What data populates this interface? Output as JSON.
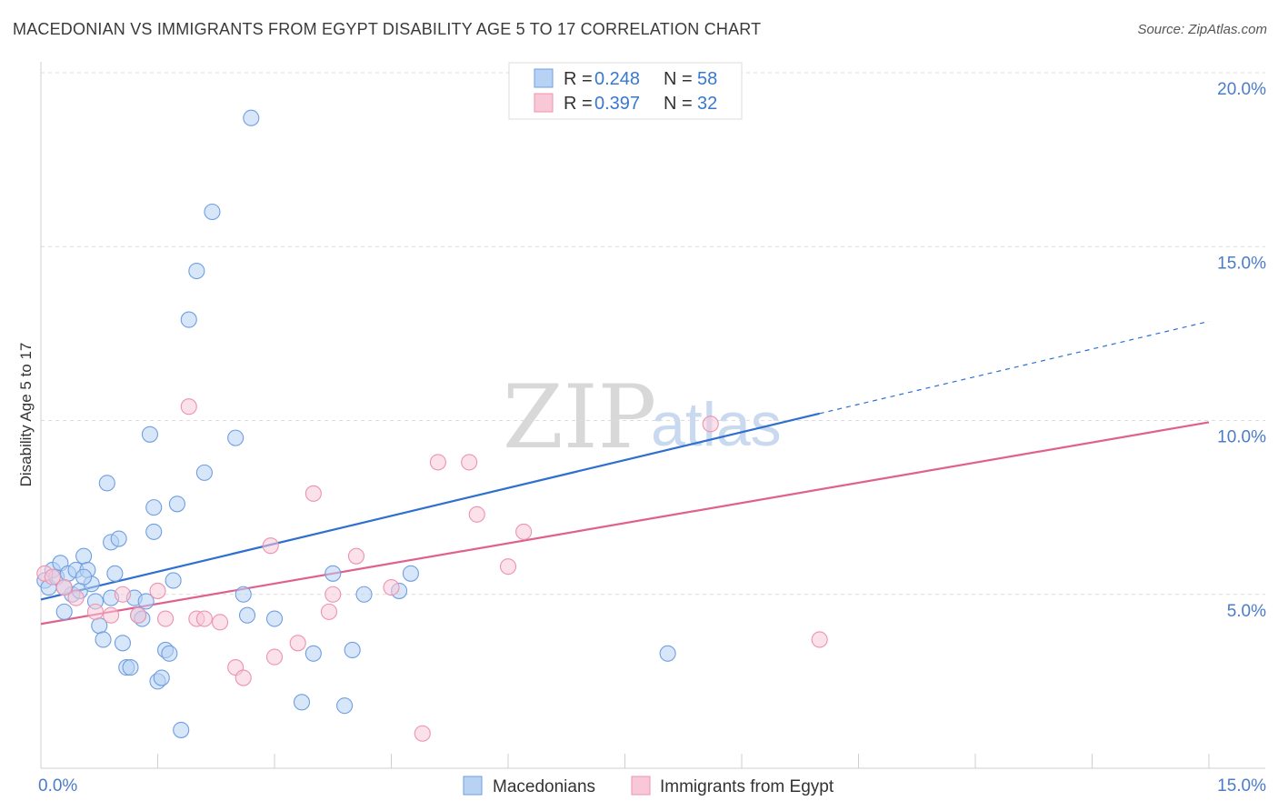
{
  "header": {
    "title": "MACEDONIAN VS IMMIGRANTS FROM EGYPT DISABILITY AGE 5 TO 17 CORRELATION CHART",
    "source": "Source: ZipAtlas.com"
  },
  "watermark": {
    "zip": "ZIP",
    "atlas": "atlas"
  },
  "legend": {
    "r_key": "R =",
    "n_key": "N =",
    "entries": [
      {
        "r": "0.248",
        "n": "58",
        "color": "#a9c8f2"
      },
      {
        "r": "0.397",
        "n": "32",
        "color": "#f6b9cc"
      }
    ]
  },
  "bottom_legend": [
    "Macedonians",
    "Immigrants from Egypt"
  ],
  "chart_data": {
    "type": "scatter",
    "title": "MACEDONIAN VS IMMIGRANTS FROM EGYPT DISABILITY AGE 5 TO 17 CORRELATION CHART",
    "xlabel": "",
    "ylabel": "Disability Age 5 to 17",
    "xlim": [
      0,
      15
    ],
    "ylim": [
      0,
      20
    ],
    "x_tick_labels": [
      "0.0%",
      "15.0%"
    ],
    "y_ticks": [
      5,
      10,
      15,
      20
    ],
    "y_tick_labels": [
      "5.0%",
      "10.0%",
      "15.0%",
      "20.0%"
    ],
    "grid": true,
    "series": [
      {
        "name": "Macedonians",
        "color": "#6f9fe0",
        "fill": "#b8d2f4",
        "line_color": "#2f6fd0",
        "trend": {
          "x0": 0,
          "y0": 4.85,
          "x1": 10.0,
          "y1": 10.2,
          "dash_to_x": 15.0,
          "dash_to_y": 12.85
        },
        "x": [
          0.05,
          0.1,
          0.15,
          0.2,
          0.25,
          0.3,
          0.35,
          0.4,
          0.45,
          0.5,
          0.55,
          0.6,
          0.65,
          0.7,
          0.75,
          0.8,
          0.85,
          0.9,
          0.95,
          1.0,
          1.05,
          1.1,
          1.15,
          1.2,
          1.25,
          1.3,
          1.35,
          1.4,
          1.45,
          1.5,
          1.55,
          1.6,
          1.65,
          1.7,
          1.75,
          1.8,
          1.9,
          2.0,
          2.1,
          2.2,
          2.5,
          2.6,
          2.65,
          2.7,
          3.0,
          3.35,
          3.5,
          3.75,
          3.9,
          4.0,
          4.15,
          4.6,
          4.75,
          8.05,
          0.3,
          0.55,
          0.9,
          1.45
        ],
        "y": [
          5.4,
          5.2,
          5.7,
          5.5,
          5.9,
          4.5,
          5.6,
          5.0,
          5.7,
          5.1,
          6.1,
          5.7,
          5.3,
          4.8,
          4.1,
          3.7,
          8.2,
          6.5,
          5.6,
          6.6,
          3.6,
          2.9,
          2.9,
          4.9,
          4.4,
          4.3,
          4.8,
          9.6,
          7.5,
          2.5,
          2.6,
          3.4,
          3.3,
          5.4,
          7.6,
          1.1,
          12.9,
          14.3,
          8.5,
          16.0,
          9.5,
          5.0,
          4.4,
          18.7,
          4.3,
          1.9,
          3.3,
          5.6,
          1.8,
          3.4,
          5.0,
          5.1,
          5.6,
          3.3,
          5.2,
          5.5,
          4.9,
          6.8
        ]
      },
      {
        "name": "Immigrants from Egypt",
        "color": "#ec93b1",
        "fill": "#f8c8d7",
        "line_color": "#e0608e",
        "trend": {
          "x0": 0,
          "y0": 4.15,
          "x1": 15.0,
          "y1": 9.95
        },
        "x": [
          0.05,
          0.15,
          0.3,
          0.45,
          0.7,
          0.9,
          1.05,
          1.25,
          1.5,
          1.6,
          1.9,
          2.0,
          2.1,
          2.3,
          2.5,
          2.6,
          2.95,
          3.0,
          3.3,
          3.5,
          3.7,
          3.75,
          4.05,
          4.5,
          4.9,
          5.1,
          5.5,
          5.6,
          6.0,
          6.2,
          8.6,
          10.0
        ],
        "y": [
          5.6,
          5.5,
          5.2,
          4.9,
          4.5,
          4.4,
          5.0,
          4.4,
          5.1,
          4.3,
          10.4,
          4.3,
          4.3,
          4.2,
          2.9,
          2.6,
          6.4,
          3.2,
          3.6,
          7.9,
          4.5,
          5.0,
          6.1,
          5.2,
          1.0,
          8.8,
          8.8,
          7.3,
          5.8,
          6.8,
          9.9,
          3.7
        ]
      }
    ]
  }
}
